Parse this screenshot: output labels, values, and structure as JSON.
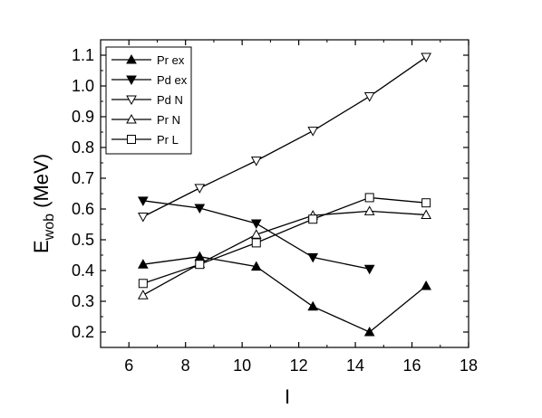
{
  "chart_data": {
    "type": "line",
    "xlabel": "I",
    "ylabel": {
      "main": "E",
      "sub": "wob",
      "rest": " (MeV)"
    },
    "xlim": [
      5,
      18
    ],
    "ylim": [
      0.15,
      1.15
    ],
    "xticks": [
      6,
      8,
      10,
      12,
      14,
      16,
      18
    ],
    "yticks": [
      0.2,
      0.3,
      0.4,
      0.5,
      0.6,
      0.7,
      0.8,
      0.9,
      1.0,
      1.1
    ],
    "ytick_labels": [
      "0.2",
      "0.3",
      "0.4",
      "0.5",
      "0.6",
      "0.7",
      "0.8",
      "0.9",
      "1.0",
      "1.1"
    ],
    "legend_position": "top-left",
    "grid": false,
    "series": [
      {
        "name": "Pr ex",
        "marker": "triangle-up-filled",
        "x": [
          6.5,
          8.5,
          10.5,
          12.5,
          14.5,
          16.5
        ],
        "y": [
          0.42,
          0.445,
          0.413,
          0.283,
          0.2,
          0.35
        ]
      },
      {
        "name": "Pd ex",
        "marker": "triangle-down-filled",
        "x": [
          6.5,
          8.5,
          10.5,
          12.5,
          14.5
        ],
        "y": [
          0.627,
          0.603,
          0.553,
          0.443,
          0.405
        ]
      },
      {
        "name": "Pd N",
        "marker": "triangle-down-open",
        "x": [
          6.5,
          8.5,
          10.5,
          12.5,
          14.5,
          16.5
        ],
        "y": [
          0.575,
          0.668,
          0.757,
          0.854,
          0.966,
          1.094
        ]
      },
      {
        "name": "Pr N",
        "marker": "triangle-up-open",
        "x": [
          6.5,
          8.5,
          10.5,
          12.5,
          14.5,
          16.5
        ],
        "y": [
          0.32,
          0.422,
          0.517,
          0.579,
          0.593,
          0.581
        ]
      },
      {
        "name": "Pr L",
        "marker": "square-open",
        "x": [
          6.5,
          8.5,
          10.5,
          12.5,
          14.5,
          16.5
        ],
        "y": [
          0.358,
          0.42,
          0.49,
          0.567,
          0.637,
          0.62
        ]
      }
    ]
  }
}
